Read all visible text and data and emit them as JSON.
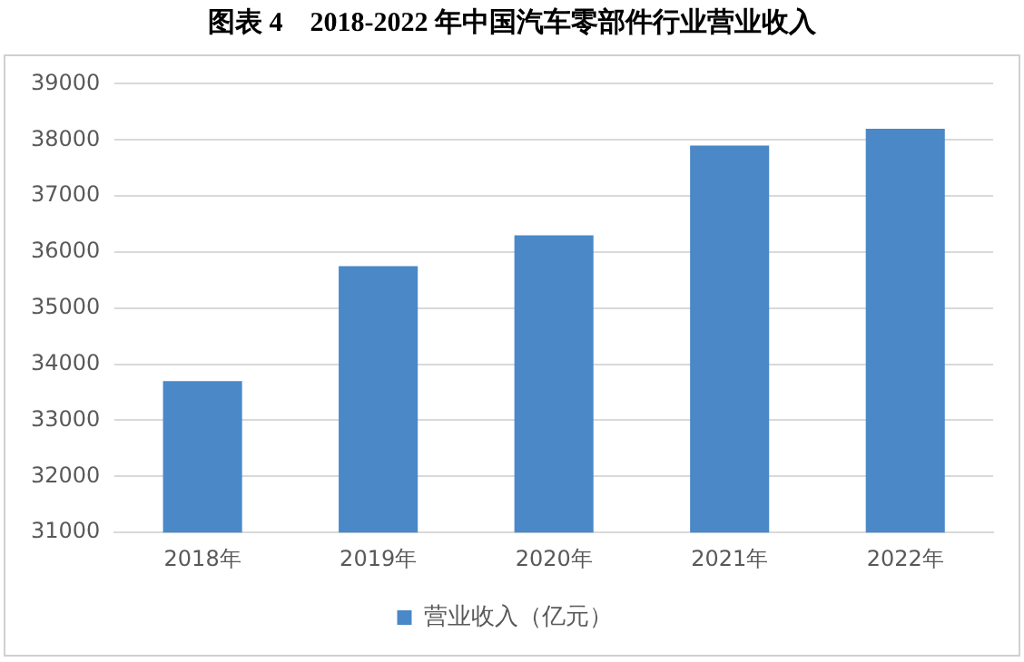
{
  "chart_data": {
    "type": "bar",
    "title": "图表 4　2018-2022 年中国汽车零部件行业营业收入",
    "categories": [
      "2018年",
      "2019年",
      "2020年",
      "2021年",
      "2022年"
    ],
    "series": [
      {
        "name": "营业收入（亿元）",
        "color": "#4a88c8",
        "values": [
          33700,
          35750,
          36300,
          37900,
          38200
        ]
      }
    ],
    "ylim": [
      31000,
      39000
    ],
    "yticks": [
      31000,
      32000,
      33000,
      34000,
      35000,
      36000,
      37000,
      38000,
      39000
    ],
    "grid": "y",
    "legend": "bottom"
  }
}
